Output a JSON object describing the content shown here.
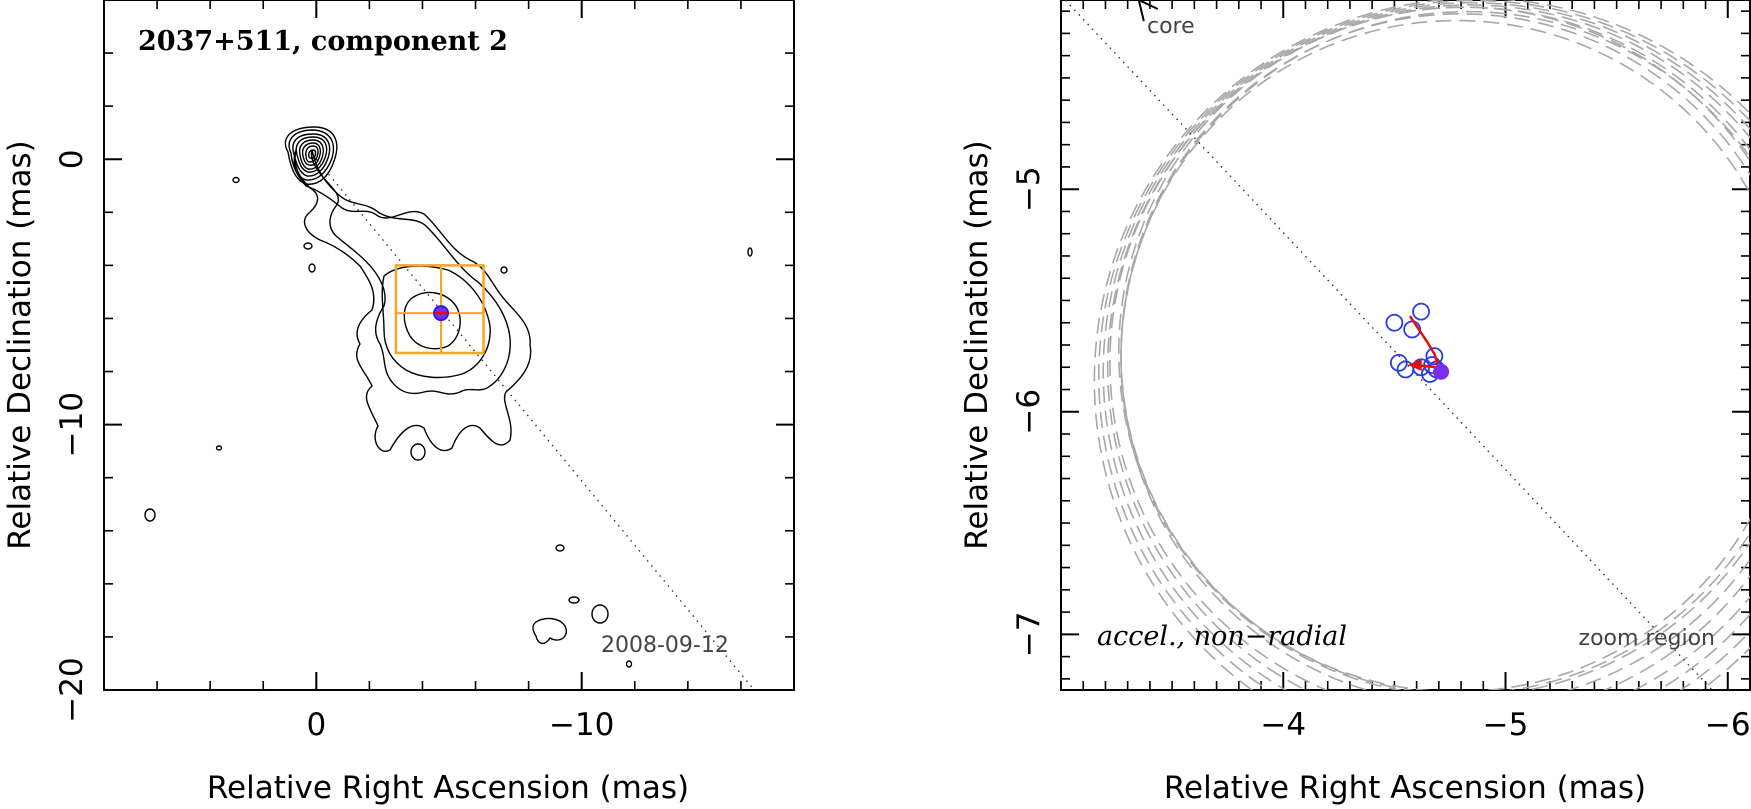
{
  "chart_data": [
    {
      "type": "contour",
      "title": "2037+511, component 2",
      "xlabel": "Relative Right Ascension (mas)",
      "ylabel": "Relative Declination (mas)",
      "xlim": [
        8,
        -18
      ],
      "ylim": [
        -20,
        6
      ],
      "x_ticks": [
        0,
        -10
      ],
      "x_tick_labels": [
        "0",
        "−10"
      ],
      "y_ticks": [
        0,
        -10,
        -20
      ],
      "y_tick_labels": [
        "0",
        "−10",
        "−20"
      ],
      "date": "2008-09-12",
      "core": {
        "x": 0,
        "y": 0
      },
      "component": {
        "x": -4.7,
        "y": -5.8
      },
      "zoom_box": {
        "x_range": [
          -3.0,
          -6.3
        ],
        "y_range": [
          -4.0,
          -7.3
        ]
      },
      "trajectory_line": {
        "from": [
          0,
          0
        ],
        "to": [
          -16.5,
          -20
        ]
      },
      "core_contour_levels": 12,
      "colors": {
        "contour": "#000000",
        "box": "#f5a623",
        "marker_fill": "#7b2cf0",
        "marker_edge": "#2222dd",
        "dotted": "#333333"
      }
    },
    {
      "type": "scatter",
      "xlabel": "Relative Right Ascension (mas)",
      "ylabel": "Relative Declination (mas)",
      "xlim": [
        -3.0,
        -6.1
      ],
      "ylim": [
        -7.25,
        -4.15
      ],
      "x_ticks": [
        -4,
        -5,
        -6
      ],
      "x_tick_labels": [
        "−4",
        "−5",
        "−6"
      ],
      "y_ticks": [
        -5,
        -6,
        -7
      ],
      "y_tick_labels": [
        "−5",
        "−6",
        "−7"
      ],
      "core_label": "core",
      "model_label": "accel., non−radial",
      "zoom_label": "zoom region",
      "epochs": [
        {
          "x": -4.5,
          "y": -5.6
        },
        {
          "x": -4.62,
          "y": -5.55
        },
        {
          "x": -4.58,
          "y": -5.63
        },
        {
          "x": -4.52,
          "y": -5.78
        },
        {
          "x": -4.55,
          "y": -5.81
        },
        {
          "x": -4.62,
          "y": -5.8
        },
        {
          "x": -4.66,
          "y": -5.83
        },
        {
          "x": -4.68,
          "y": -5.75
        },
        {
          "x": -4.67,
          "y": -5.79
        },
        {
          "x": -4.69,
          "y": -5.81
        }
      ],
      "reference_point": {
        "x": -4.71,
        "y": -5.82
      },
      "fit_path": [
        {
          "x": -4.57,
          "y": -5.57
        },
        {
          "x": -4.61,
          "y": -5.63
        },
        {
          "x": -4.65,
          "y": -5.69
        },
        {
          "x": -4.68,
          "y": -5.74
        },
        {
          "x": -4.69,
          "y": -5.77
        },
        {
          "x": -4.69,
          "y": -5.79
        }
      ],
      "velocity_arrow": {
        "from": [
          -4.69,
          -5.8
        ],
        "to": [
          -4.56,
          -5.79
        ]
      },
      "direction_line": {
        "from": [
          -3.0,
          -4.13
        ],
        "to": [
          -5.93,
          -7.25
        ]
      },
      "core_arrow_tip": [
        -3.35,
        -4.15
      ],
      "circles": [
        {
          "cx": -4.78,
          "cy": -5.75,
          "r": 1.51
        },
        {
          "cx": -4.8,
          "cy": -5.74,
          "r": 1.53
        },
        {
          "cx": -4.81,
          "cy": -5.73,
          "r": 1.55
        },
        {
          "cx": -4.83,
          "cy": -5.76,
          "r": 1.56
        },
        {
          "cx": -4.82,
          "cy": -5.78,
          "r": 1.6
        },
        {
          "cx": -4.84,
          "cy": -5.8,
          "r": 1.63
        },
        {
          "cx": -4.85,
          "cy": -5.82,
          "r": 1.66
        },
        {
          "cx": -4.86,
          "cy": -5.84,
          "r": 1.69
        },
        {
          "cx": -4.87,
          "cy": -5.86,
          "r": 1.72
        }
      ],
      "colors": {
        "epoch_marker": "#2a3de0",
        "reference_fill": "#7b2cf0",
        "fit": "#e01010",
        "circle": "#a8a8a8",
        "dotted": "#333333"
      }
    }
  ]
}
